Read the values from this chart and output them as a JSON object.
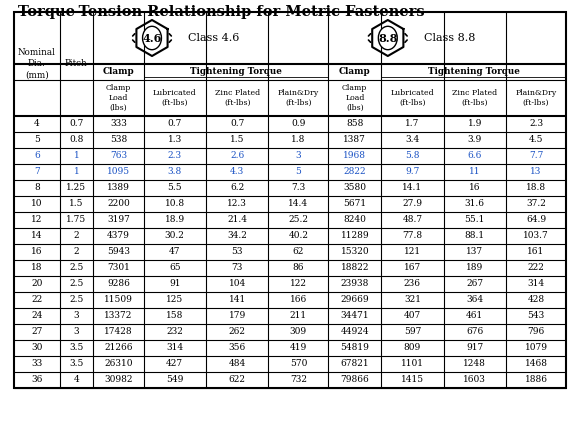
{
  "title": "Torque-Tension Relationship for Metric Fasteners",
  "rows": [
    [
      4,
      0.7,
      333,
      0.7,
      0.7,
      0.9,
      858,
      1.7,
      1.9,
      2.3
    ],
    [
      5,
      0.8,
      538,
      1.3,
      1.5,
      1.8,
      1387,
      3.4,
      3.9,
      4.5
    ],
    [
      6,
      1,
      763,
      2.3,
      2.6,
      3.0,
      1968,
      5.8,
      6.6,
      7.7
    ],
    [
      7,
      1,
      1095,
      3.8,
      4.3,
      5.0,
      2822,
      9.7,
      11.0,
      13.0
    ],
    [
      8,
      1.25,
      1389,
      5.5,
      6.2,
      7.3,
      3580,
      14.1,
      16.0,
      18.8
    ],
    [
      10,
      1.5,
      2200,
      10.8,
      12.3,
      14.4,
      5671,
      27.9,
      31.6,
      37.2
    ],
    [
      12,
      1.75,
      3197,
      18.9,
      21.4,
      25.2,
      8240,
      48.7,
      55.1,
      64.9
    ],
    [
      14,
      2,
      4379,
      30.2,
      34.2,
      40.2,
      11289,
      77.8,
      88.1,
      103.7
    ],
    [
      16,
      2,
      5943,
      47,
      53,
      62,
      15320,
      121,
      137,
      161
    ],
    [
      18,
      2.5,
      7301,
      65,
      73,
      86,
      18822,
      167,
      189,
      222
    ],
    [
      20,
      2.5,
      9286,
      91,
      104,
      122,
      23938,
      236,
      267,
      314
    ],
    [
      22,
      2.5,
      11509,
      125,
      141,
      166,
      29669,
      321,
      364,
      428
    ],
    [
      24,
      3,
      13372,
      158,
      179,
      211,
      34471,
      407,
      461,
      543
    ],
    [
      27,
      3,
      17428,
      232,
      262,
      309,
      44924,
      597,
      676,
      796
    ],
    [
      30,
      3.5,
      21266,
      314,
      356,
      419,
      54819,
      809,
      917,
      1079
    ],
    [
      33,
      3.5,
      26310,
      427,
      484,
      570,
      67821,
      1101,
      1248,
      1468
    ],
    [
      36,
      4,
      30982,
      549,
      622,
      732,
      79866,
      1415,
      1603,
      1886
    ]
  ],
  "blue_dia": [
    6,
    7
  ],
  "bg_color": "#ffffff",
  "class46_label": "4.6",
  "class46_text": "Class 4.6",
  "class88_label": "8.8",
  "class88_text": "Class 8.8",
  "col_widths_rel": [
    38,
    28,
    42,
    52,
    52,
    50,
    44,
    52,
    52,
    50
  ],
  "title_fontsize": 10.5,
  "header_fontsize": 6.8,
  "data_fontsize": 6.5,
  "bolt_label_fontsize": 8,
  "class_label_fontsize": 8
}
